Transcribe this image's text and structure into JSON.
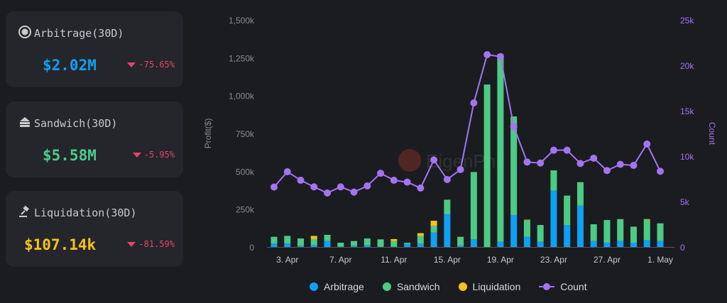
{
  "cards": [
    {
      "title": "Arbitrage(30D)",
      "value": "$2.02M",
      "change": "-75.65%",
      "color": "#0ea0f5",
      "icon": "arbitrage-coin-icon"
    },
    {
      "title": "Sandwich(30D)",
      "value": "$5.58M",
      "change": "-5.95%",
      "color": "#4ccb8f",
      "icon": "sandwich-icon"
    },
    {
      "title": "Liquidation(30D)",
      "value": "$107.14k",
      "change": "-81.59%",
      "color": "#f6c21b",
      "icon": "gavel-icon"
    }
  ],
  "watermark": "EigenPhi",
  "chart_data": {
    "type": "bar",
    "stacked": true,
    "categories": [
      "2. Apr",
      "3. Apr",
      "4. Apr",
      "5. Apr",
      "6. Apr",
      "7. Apr",
      "8. Apr",
      "9. Apr",
      "10. Apr",
      "11. Apr",
      "12. Apr",
      "13. Apr",
      "14. Apr",
      "15. Apr",
      "16. Apr",
      "17. Apr",
      "18. Apr",
      "19. Apr",
      "20. Apr",
      "21. Apr",
      "22. Apr",
      "23. Apr",
      "24. Apr",
      "25. Apr",
      "26. Apr",
      "27. Apr",
      "28. Apr",
      "29. Apr",
      "30. Apr",
      "1. May"
    ],
    "xtick_labels": [
      "3. Apr",
      "7. Apr",
      "11. Apr",
      "15. Apr",
      "19. Apr",
      "23. Apr",
      "27. Apr",
      "1. May"
    ],
    "series": [
      {
        "name": "Arbitrage",
        "color": "#0ea0f5",
        "values": [
          23,
          23,
          8,
          12,
          39,
          2,
          8,
          12,
          2,
          2,
          20,
          22,
          95,
          216,
          8,
          50,
          0,
          34,
          211,
          67,
          34,
          372,
          145,
          273,
          39,
          28,
          39,
          28,
          45,
          39
        ]
      },
      {
        "name": "Sandwich",
        "color": "#4ccb85",
        "values": [
          44,
          50,
          48,
          40,
          41,
          26,
          31,
          44,
          48,
          37,
          8,
          51,
          44,
          96,
          59,
          445,
          1073,
          1239,
          651,
          110,
          111,
          134,
          194,
          155,
          111,
          150,
          145,
          106,
          136,
          117
        ]
      },
      {
        "name": "Liquidation",
        "color": "#f6c21b",
        "values": [
          0,
          0,
          0,
          21,
          0,
          0,
          0,
          0,
          0,
          13,
          0,
          18,
          34,
          0,
          0,
          0,
          0,
          0,
          0,
          3,
          0,
          0,
          0,
          0,
          0,
          0,
          0,
          0,
          3,
          0
        ]
      },
      {
        "name": "Count",
        "color": "#a374f2",
        "type": "line",
        "axis": "right",
        "values": [
          6.59,
          8.28,
          7.34,
          6.61,
          5.94,
          6.61,
          6.04,
          6.72,
          8.12,
          7.34,
          7.14,
          6.48,
          9.58,
          7.42,
          8.52,
          15.86,
          21.17,
          20.96,
          13.25,
          9.35,
          9.24,
          10.65,
          10.65,
          9.19,
          9.77,
          8.41,
          9.09,
          8.98,
          11.33,
          8.33
        ]
      }
    ],
    "ylabel": "Profit($)",
    "y2label": "Count",
    "ylim": [
      0,
      1500
    ],
    "y2lim": [
      0,
      25
    ],
    "yticks": [
      "0",
      "250k",
      "500k",
      "750k",
      "1,000k",
      "1,250k",
      "1,500k"
    ],
    "y2ticks": [
      "0",
      "5k",
      "10k",
      "15k",
      "20k",
      "25k"
    ],
    "legend": "bottom-center",
    "grid": false
  }
}
